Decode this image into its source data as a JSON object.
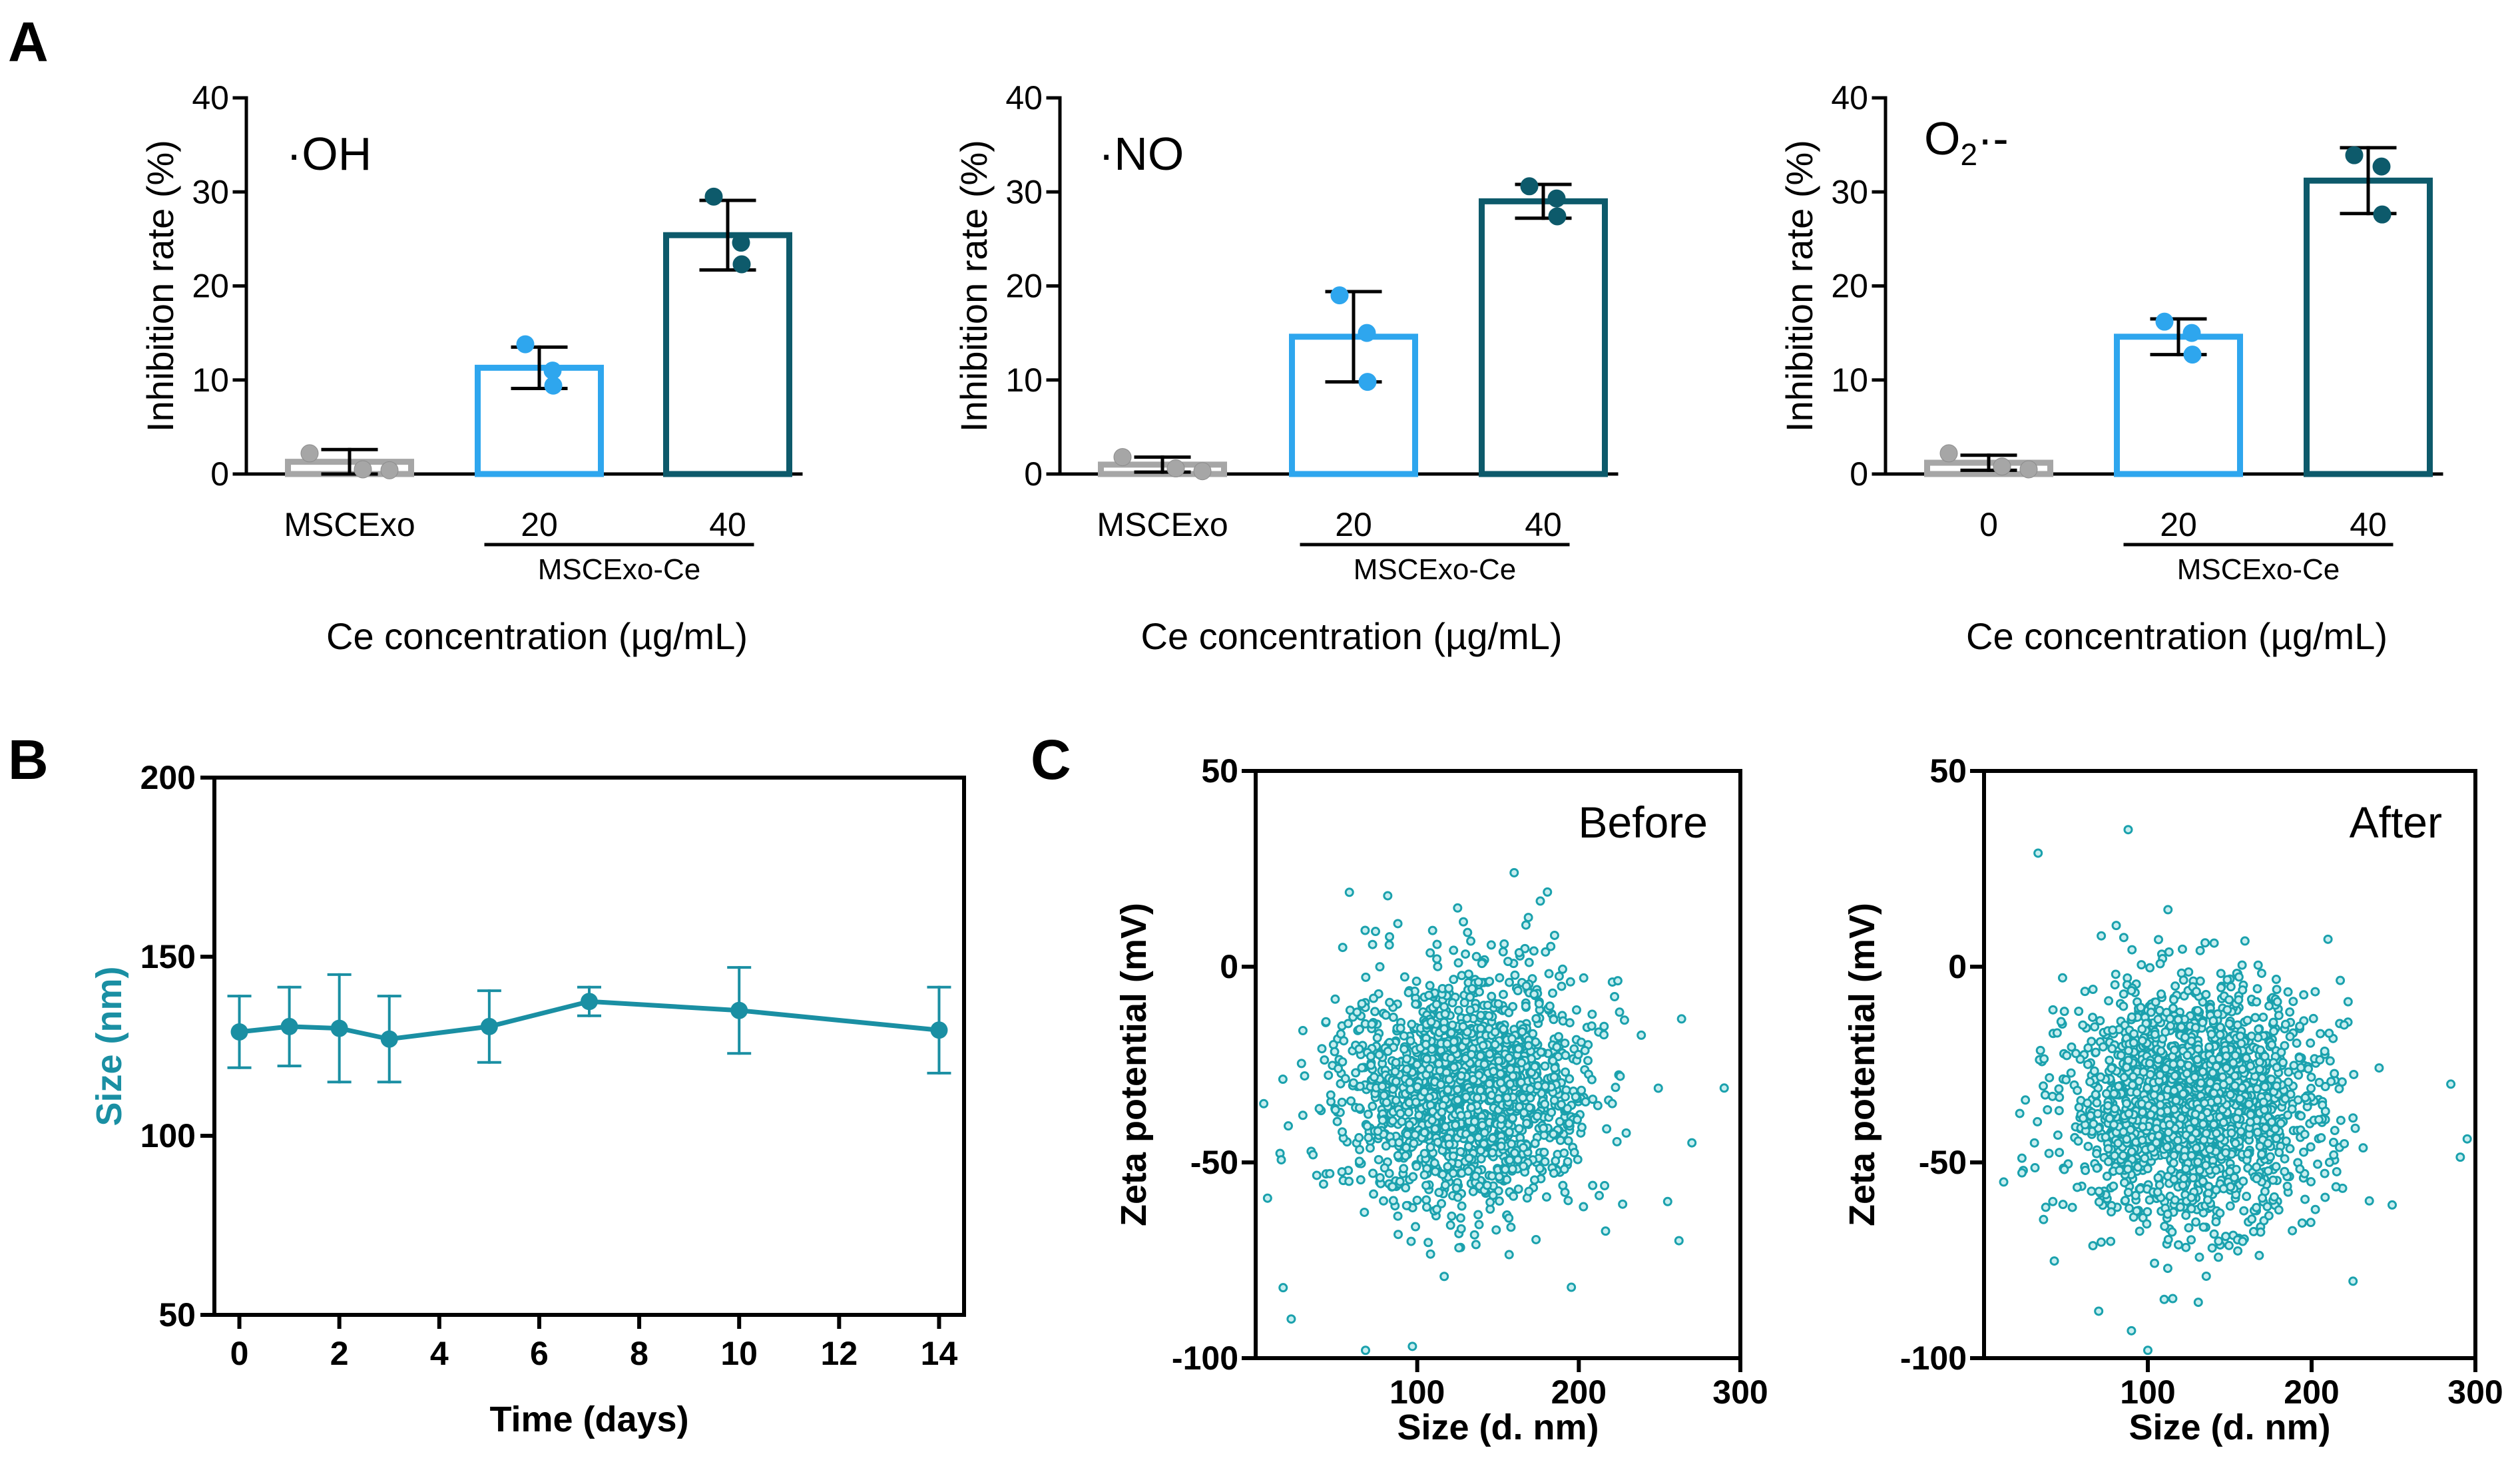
{
  "panels": {
    "A": "A",
    "B": "B",
    "C": "C"
  },
  "colors": {
    "gray": "#a6a6a6",
    "light_blue": "#2ea6ee",
    "dark_teal": "#0d5a6b",
    "teal": "#1a8fa3",
    "scatter": "#1aa1ad",
    "axis": "#000000"
  },
  "chart_data": [
    {
      "id": "A1",
      "type": "bar",
      "annotation": "·OH",
      "categories": [
        "MSCExo",
        "20",
        "40"
      ],
      "group_label": "MSCExo-Ce",
      "values": [
        1.3,
        11.3,
        25.4
      ],
      "errors": [
        1.3,
        2.2,
        3.7
      ],
      "points": [
        [
          2.2,
          0.5,
          0.4
        ],
        [
          13.8,
          11.0,
          9.4
        ],
        [
          29.5,
          24.6,
          22.3
        ]
      ],
      "ylabel": "Inhibition rate (%)",
      "xlabel": "Ce concentration (µg/mL)",
      "ylim": [
        0,
        40
      ],
      "yticks": [
        "0",
        "10",
        "20",
        "30",
        "40"
      ]
    },
    {
      "id": "A2",
      "type": "bar",
      "annotation": "·NO",
      "categories": [
        "MSCExo",
        "20",
        "40"
      ],
      "group_label": "MSCExo-Ce",
      "values": [
        1.0,
        14.6,
        29.0
      ],
      "errors": [
        0.8,
        4.8,
        1.8
      ],
      "points": [
        [
          1.8,
          0.6,
          0.3
        ],
        [
          19.0,
          15.0,
          9.8
        ],
        [
          30.6,
          29.3,
          27.4
        ]
      ],
      "ylabel": "Inhibition rate (%)",
      "xlabel": "Ce concentration (µg/mL)",
      "ylim": [
        0,
        40
      ],
      "yticks": [
        "0",
        "10",
        "20",
        "30",
        "40"
      ]
    },
    {
      "id": "A3",
      "type": "bar",
      "annotation_main": "O",
      "annotation_sub": "2",
      "annotation_tail": "·-",
      "categories": [
        "0",
        "20",
        "40"
      ],
      "group_label": "MSCExo-Ce",
      "values": [
        1.2,
        14.6,
        31.2
      ],
      "errors": [
        0.8,
        1.9,
        3.5
      ],
      "points": [
        [
          2.2,
          0.8,
          0.5
        ],
        [
          16.2,
          15.0,
          12.7
        ],
        [
          33.9,
          32.7,
          27.6
        ]
      ],
      "ylabel": "Inhibition rate (%)",
      "xlabel": "Ce concentration (µg/mL)",
      "ylim": [
        0,
        40
      ],
      "yticks": [
        "0",
        "10",
        "20",
        "30",
        "40"
      ]
    },
    {
      "id": "B",
      "type": "line",
      "x": [
        0,
        1,
        2,
        3,
        5,
        7,
        10,
        14
      ],
      "y": [
        129,
        130.5,
        130,
        127,
        130.5,
        137.5,
        135,
        129.5
      ],
      "errors": [
        10,
        11,
        15,
        12,
        10,
        4,
        12,
        12
      ],
      "xlabel": "Time (days)",
      "ylabel": "Size (nm)",
      "xlim": [
        -0.5,
        14.5
      ],
      "ylim": [
        50,
        200
      ],
      "xticks": [
        "0",
        "2",
        "4",
        "6",
        "8",
        "10",
        "12",
        "14"
      ],
      "yticks": [
        "50",
        "100",
        "150",
        "200"
      ]
    },
    {
      "id": "C1",
      "type": "scatter",
      "annotation": "Before",
      "xlabel": "Size (d. nm)",
      "ylabel": "Zeta potential (mV)",
      "xlim": [
        0,
        300
      ],
      "ylim": [
        -100,
        50
      ],
      "xticks": [
        "100",
        "200",
        "300"
      ],
      "yticks": [
        "-100",
        "-50",
        "0",
        "50"
      ],
      "cluster": {
        "n": 1700,
        "center_x": 130,
        "center_y": -32,
        "sd_x": 38,
        "sd_y": 15
      },
      "outliers": [
        [
          58,
          19
        ],
        [
          160,
          24
        ],
        [
          125,
          15
        ],
        [
          88,
          11
        ],
        [
          185,
          8
        ],
        [
          22,
          -90
        ],
        [
          17,
          -82
        ],
        [
          68,
          -98
        ],
        [
          97,
          -97
        ],
        [
          262,
          -70
        ],
        [
          255,
          -60
        ],
        [
          5,
          -35
        ],
        [
          290,
          -31
        ],
        [
          270,
          -45
        ]
      ]
    },
    {
      "id": "C2",
      "type": "scatter",
      "annotation": "After",
      "xlabel": "Size (d. nm)",
      "ylabel": "Zeta potential (mV)",
      "xlim": [
        0,
        300
      ],
      "ylim": [
        -100,
        50
      ],
      "xticks": [
        "100",
        "200",
        "300"
      ],
      "yticks": [
        "-100",
        "-50",
        "0",
        "50"
      ],
      "cluster": {
        "n": 1900,
        "center_x": 128,
        "center_y": -35,
        "sd_x": 38,
        "sd_y": 15
      },
      "outliers": [
        [
          33,
          29
        ],
        [
          88,
          35
        ],
        [
          210,
          7
        ],
        [
          100,
          -98
        ],
        [
          90,
          -93
        ],
        [
          70,
          -88
        ],
        [
          42,
          -60
        ],
        [
          12,
          -55
        ],
        [
          295,
          -44
        ],
        [
          285,
          -30
        ],
        [
          110,
          -85
        ]
      ]
    }
  ]
}
